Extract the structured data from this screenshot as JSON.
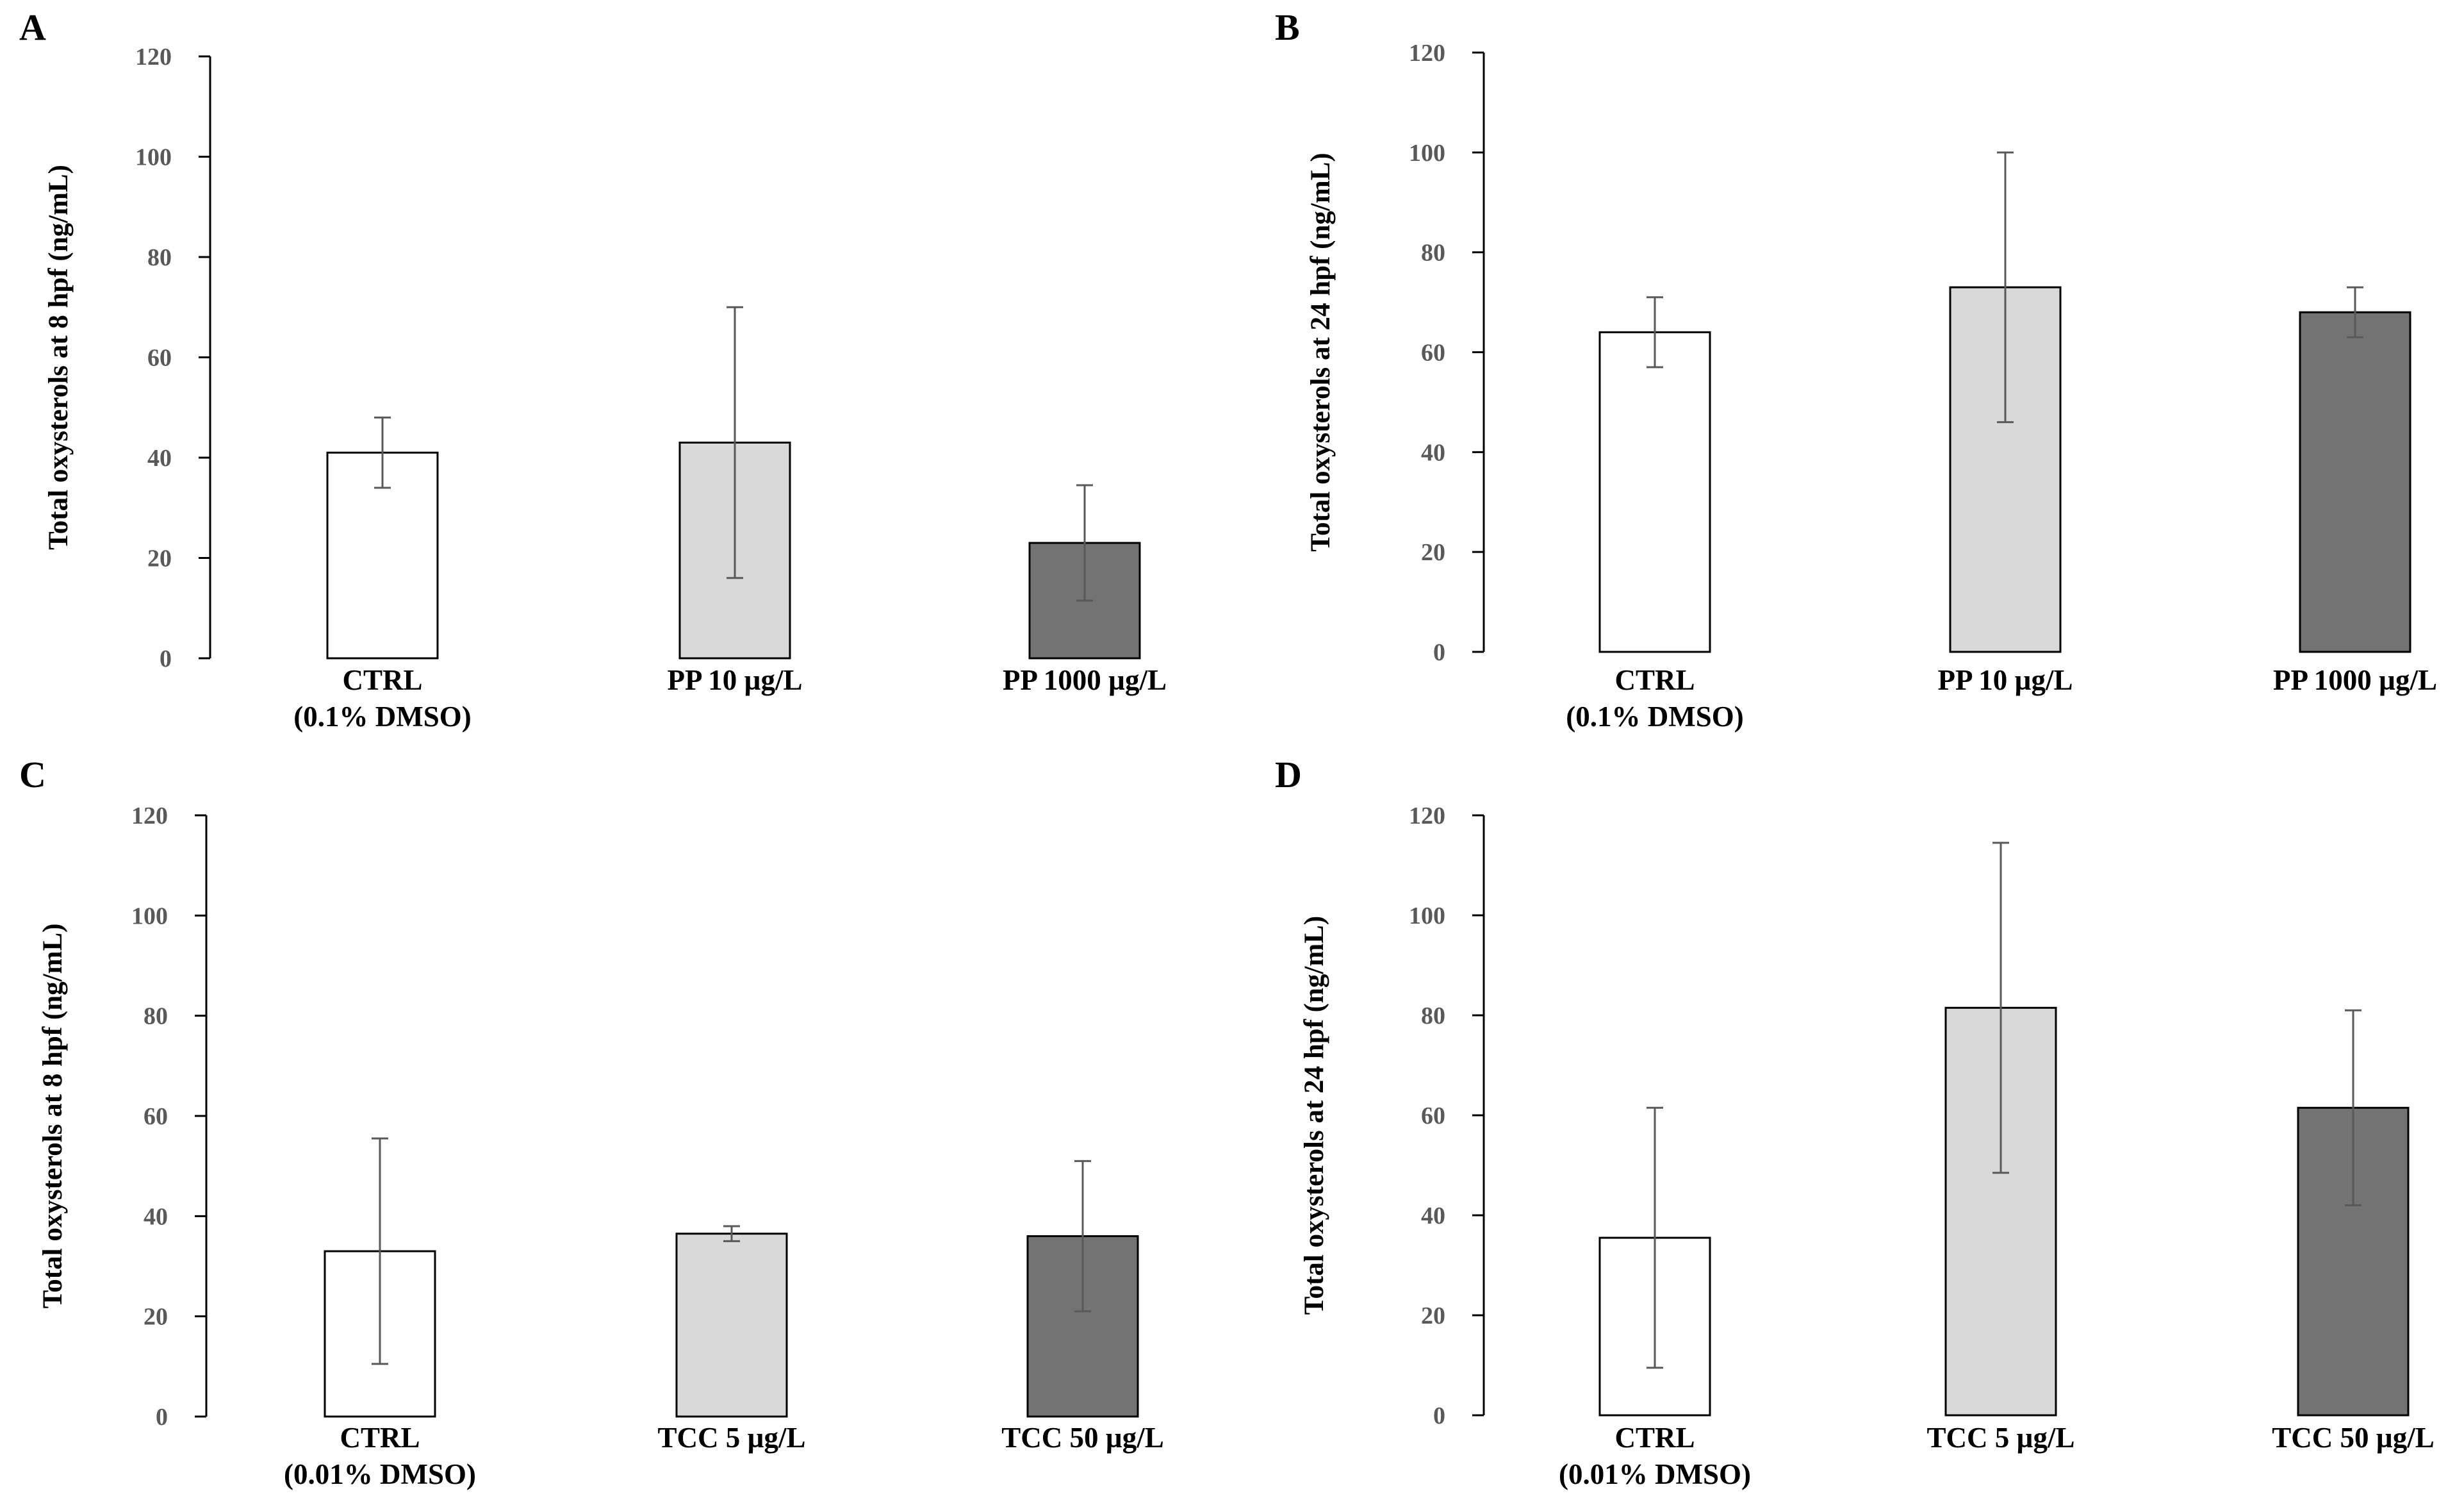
{
  "chart_data": [
    {
      "panel": "A",
      "type": "bar",
      "ylabel": "Total oxysterols at 8 hpf (ng/mL)",
      "ylim": [
        0,
        120
      ],
      "yticks": [
        "0",
        "20",
        "40",
        "60",
        "80",
        "100",
        "120"
      ],
      "categories": [
        [
          "CTRL",
          "(0.1%  DMSO)"
        ],
        [
          "PP 10 µg/L"
        ],
        [
          "PP 1000 µg/L"
        ]
      ],
      "values": [
        41,
        43,
        23
      ],
      "errors": [
        7,
        27,
        11.5
      ],
      "colors": [
        "#ffffff",
        "#d9d9d9",
        "#737373"
      ]
    },
    {
      "panel": "B",
      "type": "bar",
      "ylabel": "Total oxysterols at 24 hpf (ng/mL)",
      "ylim": [
        0,
        120
      ],
      "yticks": [
        "0",
        "20",
        "40",
        "60",
        "80",
        "100",
        "120"
      ],
      "categories": [
        [
          "CTRL",
          "(0.1%  DMSO)"
        ],
        [
          "PP 10 µg/L"
        ],
        [
          "PP 1000 µg/L"
        ]
      ],
      "values": [
        64,
        73,
        68
      ],
      "errors": [
        7,
        27,
        5
      ],
      "colors": [
        "#ffffff",
        "#d9d9d9",
        "#737373"
      ]
    },
    {
      "panel": "C",
      "type": "bar",
      "ylabel": "Total oxysterols at 8 hpf (ng/mL)",
      "ylim": [
        0,
        120
      ],
      "yticks": [
        "0",
        "20",
        "40",
        "60",
        "80",
        "100",
        "120"
      ],
      "categories": [
        [
          "CTRL",
          "(0.01%  DMSO)"
        ],
        [
          "TCC 5 µg/L"
        ],
        [
          "TCC 50 µg/L"
        ]
      ],
      "values": [
        33,
        36.5,
        36
      ],
      "errors": [
        22.5,
        1.5,
        15
      ],
      "colors": [
        "#ffffff",
        "#d9d9d9",
        "#737373"
      ]
    },
    {
      "panel": "D",
      "type": "bar",
      "ylabel": "Total oxysterols at 24 hpf (ng/mL)",
      "ylim": [
        0,
        120
      ],
      "yticks": [
        "0",
        "20",
        "40",
        "60",
        "80",
        "100",
        "120"
      ],
      "categories": [
        [
          "CTRL",
          "(0.01%  DMSO)"
        ],
        [
          "TCC 5 µg/L"
        ],
        [
          "TCC 50 µg/L"
        ]
      ],
      "values": [
        35.5,
        81.5,
        61.5
      ],
      "errors": [
        26,
        33,
        19.5
      ],
      "colors": [
        "#ffffff",
        "#d9d9d9",
        "#737373"
      ]
    }
  ]
}
